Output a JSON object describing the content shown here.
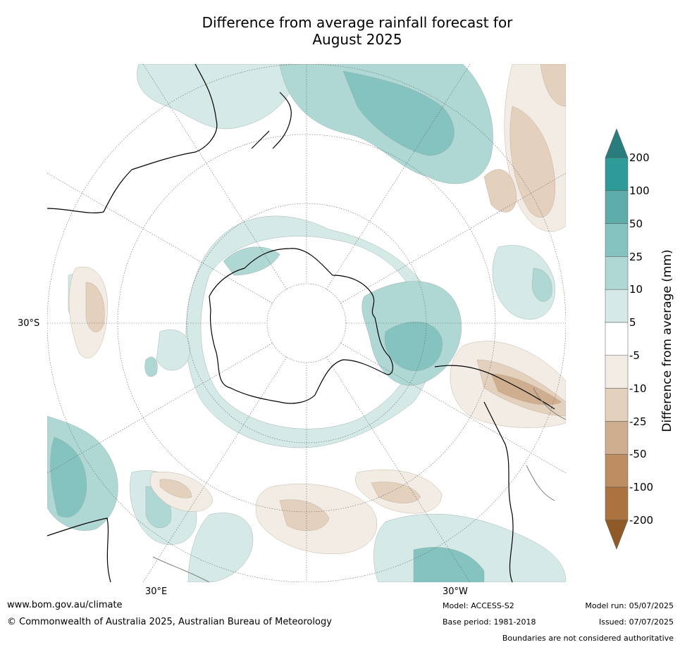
{
  "title": {
    "line1": "Difference from average rainfall forecast for",
    "line2": "August 2025"
  },
  "map": {
    "projection": "south-polar",
    "lat_label": "30°S",
    "lon_labels": [
      "30°E",
      "30°W"
    ],
    "land_color": "#ffffff",
    "coast_color": "#000000",
    "boundary_color": "#808080"
  },
  "colorbar": {
    "title": "Difference from average (mm)",
    "ticks": [
      "200",
      "100",
      "50",
      "25",
      "10",
      "5",
      "-5",
      "-10",
      "-25",
      "-50",
      "-100",
      "-200"
    ],
    "colors": [
      "#2a7d7d",
      "#2e9b98",
      "#5eadaa",
      "#84c3bf",
      "#afd8d5",
      "#d5e9e7",
      "#ffffff",
      "#f2ece4",
      "#e3d0bd",
      "#cfae8f",
      "#bd8e62",
      "#aa7340",
      "#8f5a27"
    ]
  },
  "footer": {
    "url": "www.bom.gov.au/climate",
    "copyright": "© Commonwealth of Australia 2025, Australian Bureau of Meteorology",
    "model": "Model: ACCESS-S2",
    "base_period": "Base period: 1981-2018",
    "model_run": "Model run: 05/07/2025",
    "issued": "Issued: 07/07/2025",
    "disclaimer": "Boundaries are not considered authoritative"
  }
}
